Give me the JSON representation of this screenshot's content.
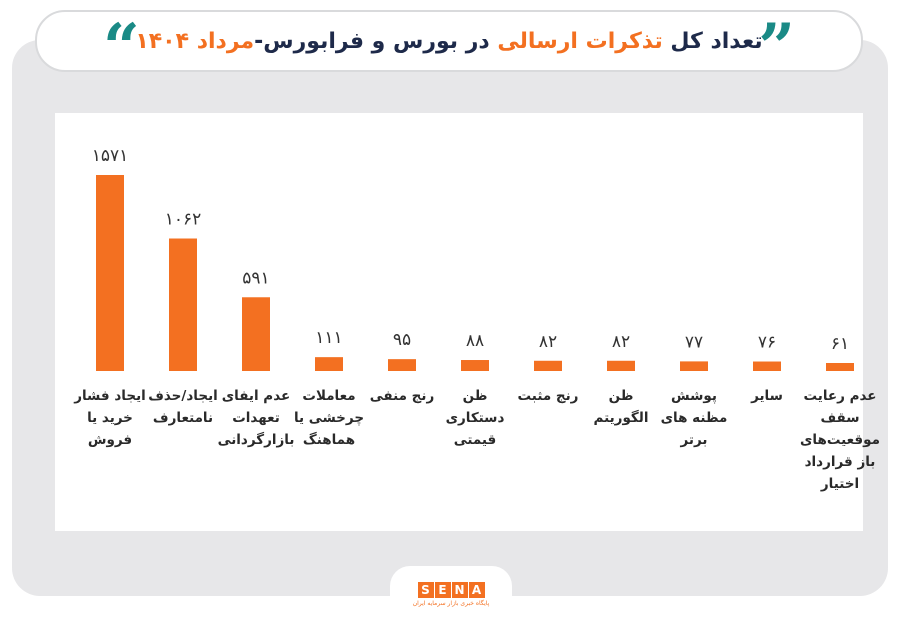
{
  "header": {
    "title_part1": "تعداد کل ",
    "title_part2": "تذکرات ارسالی",
    "title_part3": " در بورس و فرابورس-",
    "title_part4": "مرداد ۱۴۰۴",
    "quote_right": "”",
    "quote_left": "“"
  },
  "colors": {
    "bar": "#f37021",
    "title_dark": "#1e2a4a",
    "accent": "#f37021",
    "quote": "#1a8a86"
  },
  "chart_data": {
    "type": "bar",
    "title": "تعداد کل تذکرات ارسالی در بورس و فرابورس-مرداد ۱۴۰۴",
    "categories": [
      "ایجاد فشار خرید یا فروش",
      "ایجاد/حذف نامتعارف",
      "عدم ایفای تعهدات بازارگردانی",
      "معاملات چرخشی یا هماهنگ",
      "رنج منفی",
      "ظن دستکاری قیمتی",
      "رنج مثبت",
      "ظن الگوریتم",
      "پوشش مظنه های برتر",
      "سایر",
      "عدم رعایت سقف موقعیت‌های باز قرارداد اختیار"
    ],
    "values": [
      1571,
      1062,
      591,
      111,
      95,
      88,
      82,
      82,
      77,
      76,
      61
    ],
    "value_labels": [
      "۱۵۷۱",
      "۱۰۶۲",
      "۵۹۱",
      "۱۱۱",
      "۹۵",
      "۸۸",
      "۸۲",
      "۸۲",
      "۷۷",
      "۷۶",
      "۶۱"
    ],
    "xlabel": "",
    "ylabel": "",
    "ylim": [
      0,
      1700
    ],
    "grid": false,
    "legend": "none"
  },
  "footer": {
    "logo_letters": [
      "S",
      "E",
      "N",
      "A"
    ],
    "logo_subtitle": "پایگاه خبری بازار سرمایه ایران"
  }
}
